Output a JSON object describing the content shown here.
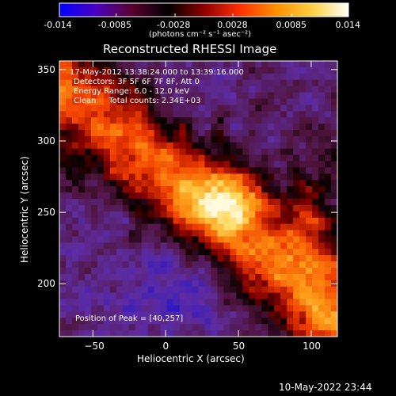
{
  "colorbar": {
    "min": -0.014,
    "max": 0.014,
    "tick_labels": [
      "-0.014",
      "-0.0085",
      "-0.0028",
      "0.0028",
      "0.0085",
      "0.014"
    ],
    "unit_label": "(photons cm⁻² s⁻¹ asec⁻²)",
    "colors": [
      "#0000ff",
      "#4a00c0",
      "#5a0030",
      "#000000",
      "#8c0000",
      "#ff3000",
      "#ff9000",
      "#ffd040",
      "#ffffff"
    ]
  },
  "title": "Reconstructed RHESSI Image",
  "info": {
    "time_range": "17-May-2012 13:38:24.000 to 13:39:16.000",
    "detectors": "Detectors: 3F 5F 6F 7F 8F, Att 0",
    "energy_range": "Energy Range: 6.0 - 12.0 keV",
    "clean_counts": "Clean     Total counts: 2.34E+03"
  },
  "peak_text": "Position of Peak = [40,257]",
  "axes": {
    "xlabel": "Heliocentric X (arcsec)",
    "ylabel": "Heliocentric Y (arcsec)",
    "xlim": [
      -73,
      118
    ],
    "ylim": [
      163,
      356
    ],
    "xticks": [
      -50,
      0,
      50,
      100
    ],
    "yticks": [
      200,
      250,
      300,
      350
    ]
  },
  "footer": {
    "timestamp": "10-May-2022 23:44"
  }
}
